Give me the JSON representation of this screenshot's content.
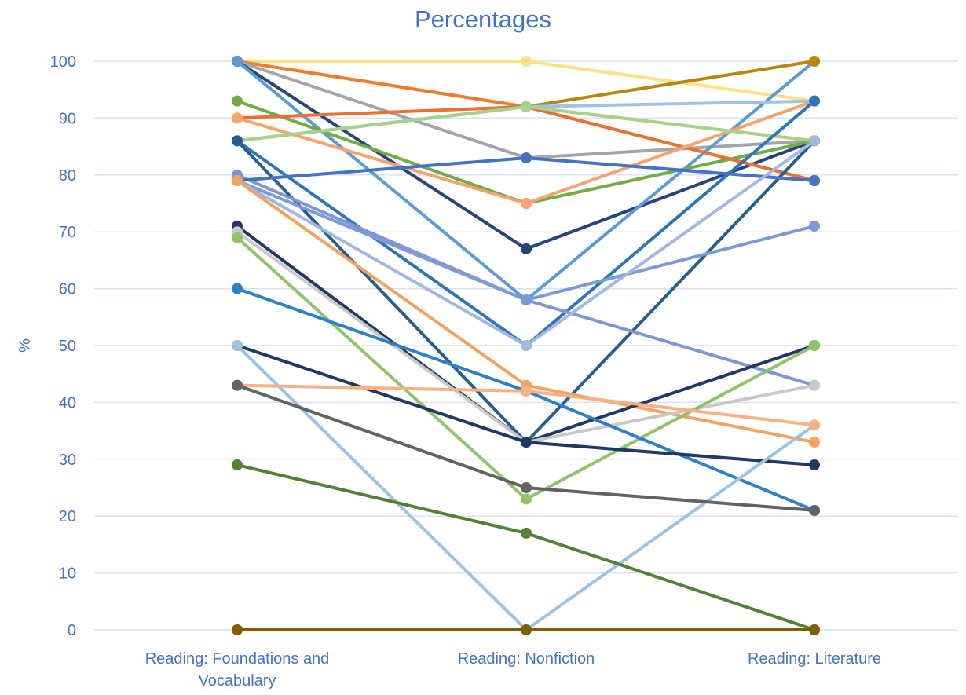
{
  "chart_data": {
    "type": "line",
    "title": "Percentages",
    "ylabel": "%",
    "xlabel": "",
    "categories": [
      [
        "Reading: Foundations and",
        "Vocabulary"
      ],
      [
        "Reading: Nonfiction"
      ],
      [
        "Reading: Literature"
      ]
    ],
    "ylim": [
      0,
      100
    ],
    "yticks": [
      0,
      10,
      20,
      30,
      40,
      50,
      60,
      70,
      80,
      90,
      100
    ],
    "grid": true,
    "legend": "none",
    "text_color": "#4472C4",
    "grid_color": "#D9E1F2",
    "series": [
      {
        "values": [
          100,
          100,
          93
        ],
        "color": "#FFE083"
      },
      {
        "values": [
          100,
          92,
          86
        ],
        "color": "#FFC000"
      },
      {
        "values": [
          100,
          92,
          79
        ],
        "color": "#ED7D31"
      },
      {
        "values": [
          100,
          83,
          86
        ],
        "color": "#A5A5A5"
      },
      {
        "values": [
          100,
          67,
          86
        ],
        "color": "#264478"
      },
      {
        "values": [
          100,
          58,
          100
        ],
        "color": "#5B9BD5"
      },
      {
        "values": [
          93,
          75,
          86
        ],
        "color": "#70AD47"
      },
      {
        "values": [
          90,
          92,
          79
        ],
        "color": "#E97132"
      },
      {
        "values": [
          90,
          75,
          93
        ],
        "color": "#F4A46E"
      },
      {
        "values": [
          86,
          92,
          100
        ],
        "color": "#B8860B"
      },
      {
        "values": [
          86,
          92,
          93
        ],
        "color": "#9DC3E6"
      },
      {
        "values": [
          86,
          92,
          86
        ],
        "color": "#A9D18E"
      },
      {
        "values": [
          86,
          50,
          93
        ],
        "color": "#2E75B6"
      },
      {
        "values": [
          86,
          33,
          86
        ],
        "color": "#255E91"
      },
      {
        "values": [
          80,
          58,
          43
        ],
        "color": "#7F96D4"
      },
      {
        "values": [
          79,
          83,
          79
        ],
        "color": "#4472C4"
      },
      {
        "values": [
          79,
          58,
          71
        ],
        "color": "#7C9BD6"
      },
      {
        "values": [
          79,
          50,
          86
        ],
        "color": "#A3B8E0"
      },
      {
        "values": [
          79,
          43,
          33
        ],
        "color": "#F4A261"
      },
      {
        "values": [
          71,
          33,
          50
        ],
        "color": "#203864"
      },
      {
        "values": [
          70,
          33,
          43
        ],
        "color": "#C9C9C9"
      },
      {
        "values": [
          69,
          23,
          50
        ],
        "color": "#8FC46A"
      },
      {
        "values": [
          60,
          42,
          21
        ],
        "color": "#2F80C8"
      },
      {
        "values": [
          50,
          33,
          29
        ],
        "color": "#1F3864"
      },
      {
        "values": [
          50,
          0,
          36
        ],
        "color": "#9CC3E5"
      },
      {
        "values": [
          43,
          42,
          36
        ],
        "color": "#F8B183"
      },
      {
        "values": [
          43,
          25,
          21
        ],
        "color": "#636363"
      },
      {
        "values": [
          29,
          17,
          0
        ],
        "color": "#548235"
      },
      {
        "values": [
          0,
          0,
          0
        ],
        "color": "#7F6000"
      }
    ]
  }
}
